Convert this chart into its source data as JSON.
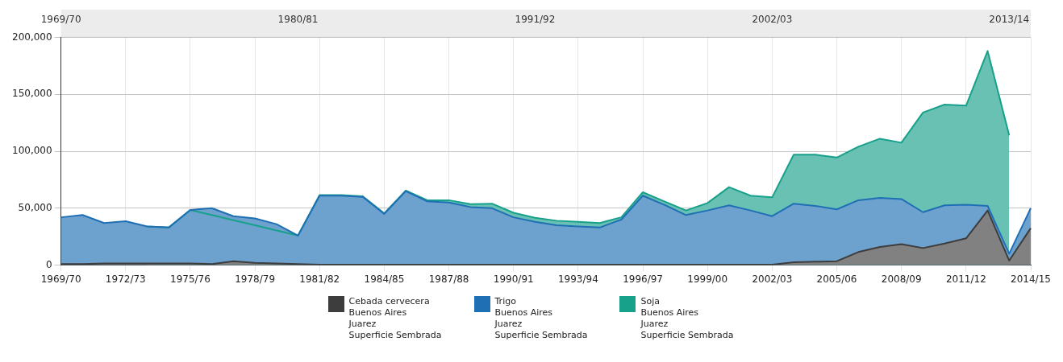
{
  "chart_data": {
    "type": "area",
    "categories": [
      "1969/70",
      null,
      null,
      "1972/73",
      null,
      null,
      "1975/76",
      null,
      null,
      "1978/79",
      null,
      "1980/81",
      "1981/82",
      null,
      null,
      "1984/85",
      null,
      null,
      "1987/88",
      null,
      null,
      "1990/91",
      "1991/92",
      null,
      "1993/94",
      null,
      null,
      "1996/97",
      null,
      null,
      "1999/00",
      null,
      null,
      "2002/03",
      null,
      null,
      "2005/06",
      null,
      null,
      "2008/09",
      null,
      null,
      "2011/12",
      null,
      "2013/14",
      "2014/15"
    ],
    "series": [
      {
        "name": "Cebada cervecera\nBuenos Aires\nJuarez\nSuperficie Sembrada",
        "color": "#3d3d3d",
        "values": [
          1000,
          1000,
          1500,
          1500,
          1500,
          1500,
          1500,
          1000,
          3500,
          2000,
          1500,
          1000,
          500,
          500,
          500,
          500,
          500,
          500,
          500,
          500,
          500,
          500,
          500,
          500,
          500,
          500,
          500,
          500,
          500,
          500,
          500,
          500,
          500,
          500,
          2500,
          3000,
          3500,
          11500,
          16000,
          18500,
          15000,
          19000,
          23500,
          48000,
          4000,
          32500
        ]
      },
      {
        "name": "Trigo\nBuenos Aires\nJuarez\nSuperficie Sembrada",
        "color": "#1f6fb4",
        "values": [
          42000,
          44000,
          37000,
          38500,
          34000,
          33000,
          48500,
          50000,
          43000,
          41000,
          36000,
          26000,
          61000,
          61000,
          60000,
          45000,
          65000,
          56000,
          55000,
          51000,
          50000,
          42000,
          38000,
          35000,
          34000,
          33000,
          40000,
          61000,
          53000,
          44000,
          48000,
          52500,
          48000,
          43000,
          54000,
          52000,
          49000,
          57000,
          59000,
          58000,
          46500,
          52500,
          53000,
          52000,
          10000,
          50000
        ]
      },
      {
        "name": "Soja\nBuenos Aires\nJuarez\nSuperficie Sembrada",
        "color": "#17a08a",
        "values": [
          null,
          null,
          null,
          null,
          34000,
          33000,
          48500,
          44000,
          39500,
          35000,
          30500,
          26000,
          61500,
          61500,
          60500,
          45500,
          65500,
          57000,
          57000,
          53500,
          54000,
          46000,
          41500,
          39000,
          38000,
          37000,
          42000,
          64000,
          56000,
          48000,
          54500,
          68500,
          61000,
          59500,
          97000,
          97000,
          94500,
          104000,
          111000,
          107500,
          134000,
          141000,
          140000,
          188000,
          114000,
          null
        ]
      }
    ],
    "ylim": [
      0,
      200000
    ],
    "yticks": [
      {
        "value": 0,
        "label": "0"
      },
      {
        "value": 50000,
        "label": "50,000"
      },
      {
        "value": 100000,
        "label": "100,000"
      },
      {
        "value": 150000,
        "label": "150,000"
      },
      {
        "value": 200000,
        "label": "200,000"
      }
    ],
    "grid": true,
    "legend": "bottom"
  }
}
